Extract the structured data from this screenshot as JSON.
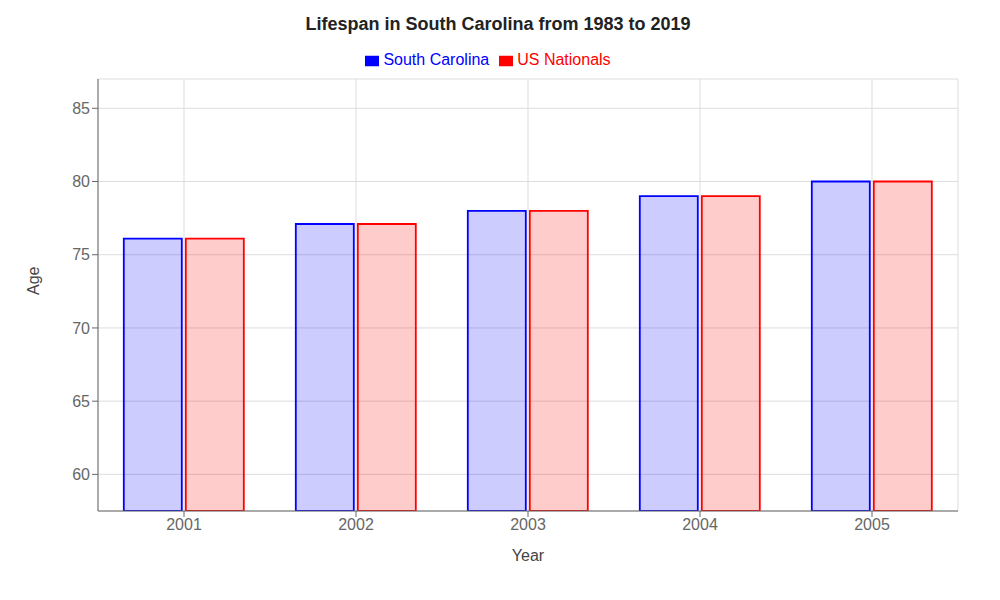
{
  "chart_data": {
    "type": "bar",
    "title": "Lifespan in South Carolina from 1983 to 2019",
    "xlabel": "Year",
    "ylabel": "Age",
    "categories": [
      "2001",
      "2002",
      "2003",
      "2004",
      "2005"
    ],
    "series": [
      {
        "name": "South Carolina",
        "color": "#0000ff",
        "values": [
          76.1,
          77.1,
          78.0,
          79.0,
          80.0
        ]
      },
      {
        "name": "US Nationals",
        "color": "#ff0000",
        "values": [
          76.1,
          77.1,
          78.0,
          79.0,
          80.0
        ]
      }
    ],
    "ylim": [
      57.5,
      87
    ],
    "yticks": [
      60,
      65,
      70,
      75,
      80,
      85
    ],
    "grid": true,
    "legend": "top"
  }
}
